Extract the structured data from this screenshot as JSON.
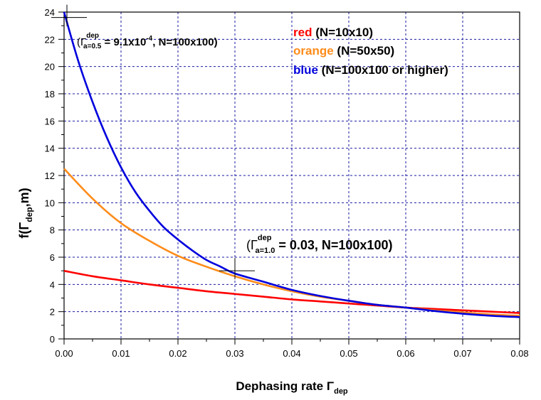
{
  "chart_data": {
    "type": "line",
    "xlabel": {
      "main": "Dephasing rate Γ",
      "sub": "dep"
    },
    "ylabel": {
      "pre": "f(Γ",
      "sub": "dep",
      "post": ",m)"
    },
    "xlim": [
      0,
      0.08
    ],
    "ylim": [
      0,
      24
    ],
    "x_ticks": [
      "0.00",
      "0.01",
      "0.02",
      "0.03",
      "0.04",
      "0.05",
      "0.06",
      "0.07",
      "0.08"
    ],
    "y_ticks": [
      "0",
      "2",
      "4",
      "6",
      "8",
      "10",
      "12",
      "14",
      "16",
      "18",
      "20",
      "22",
      "24"
    ],
    "grid": true,
    "series": [
      {
        "name": "red",
        "color": "#ff0000",
        "legend": {
          "word": "red",
          "rest": " (N=10x10)"
        },
        "x": [
          0,
          0.005,
          0.01,
          0.015,
          0.02,
          0.025,
          0.03,
          0.035,
          0.04,
          0.045,
          0.05,
          0.055,
          0.06,
          0.065,
          0.07,
          0.075,
          0.08
        ],
        "y": [
          5.0,
          4.6,
          4.3,
          4.0,
          3.75,
          3.5,
          3.3,
          3.1,
          2.9,
          2.75,
          2.6,
          2.45,
          2.3,
          2.2,
          2.1,
          2.0,
          1.9
        ]
      },
      {
        "name": "orange",
        "color": "#ff8c1a",
        "legend": {
          "word": "orange",
          "rest": " (N=50x50)"
        },
        "x": [
          0,
          0.005,
          0.01,
          0.015,
          0.02,
          0.025,
          0.03,
          0.035,
          0.04,
          0.045,
          0.05,
          0.055,
          0.06,
          0.065,
          0.07,
          0.075,
          0.08
        ],
        "y": [
          12.5,
          10.3,
          8.5,
          7.2,
          6.1,
          5.3,
          4.6,
          4.0,
          3.5,
          3.1,
          2.8,
          2.5,
          2.3,
          2.1,
          1.95,
          1.8,
          1.7
        ]
      },
      {
        "name": "blue",
        "color": "#0000dd",
        "legend": {
          "word": "blue",
          "rest": " (N=100x100 or higher)"
        },
        "x": [
          0,
          0.0025,
          0.005,
          0.0075,
          0.01,
          0.0125,
          0.015,
          0.0175,
          0.02,
          0.0225,
          0.025,
          0.0275,
          0.03,
          0.035,
          0.04,
          0.045,
          0.05,
          0.055,
          0.06,
          0.065,
          0.07,
          0.075,
          0.08
        ],
        "y": [
          24.0,
          20.4,
          17.4,
          14.8,
          12.6,
          10.8,
          9.4,
          8.2,
          7.3,
          6.5,
          5.8,
          5.3,
          4.8,
          4.2,
          3.6,
          3.15,
          2.8,
          2.5,
          2.3,
          2.05,
          1.85,
          1.7,
          1.6
        ]
      }
    ],
    "annotations": [
      {
        "id": "annot-a05",
        "open": "(Γ",
        "sup": "dep",
        "sub": "a=0.5",
        "value": " = 9.1x10",
        "exp": "-4",
        "rest": ", N=100x100)",
        "x": 0.0005,
        "y": 23.6
      },
      {
        "id": "annot-a10",
        "open": "(Γ",
        "sup": "dep",
        "sub": "a=1.0",
        "value": " = 0.03, N=100x100)",
        "x": 0.03,
        "y": 5.0
      }
    ]
  }
}
